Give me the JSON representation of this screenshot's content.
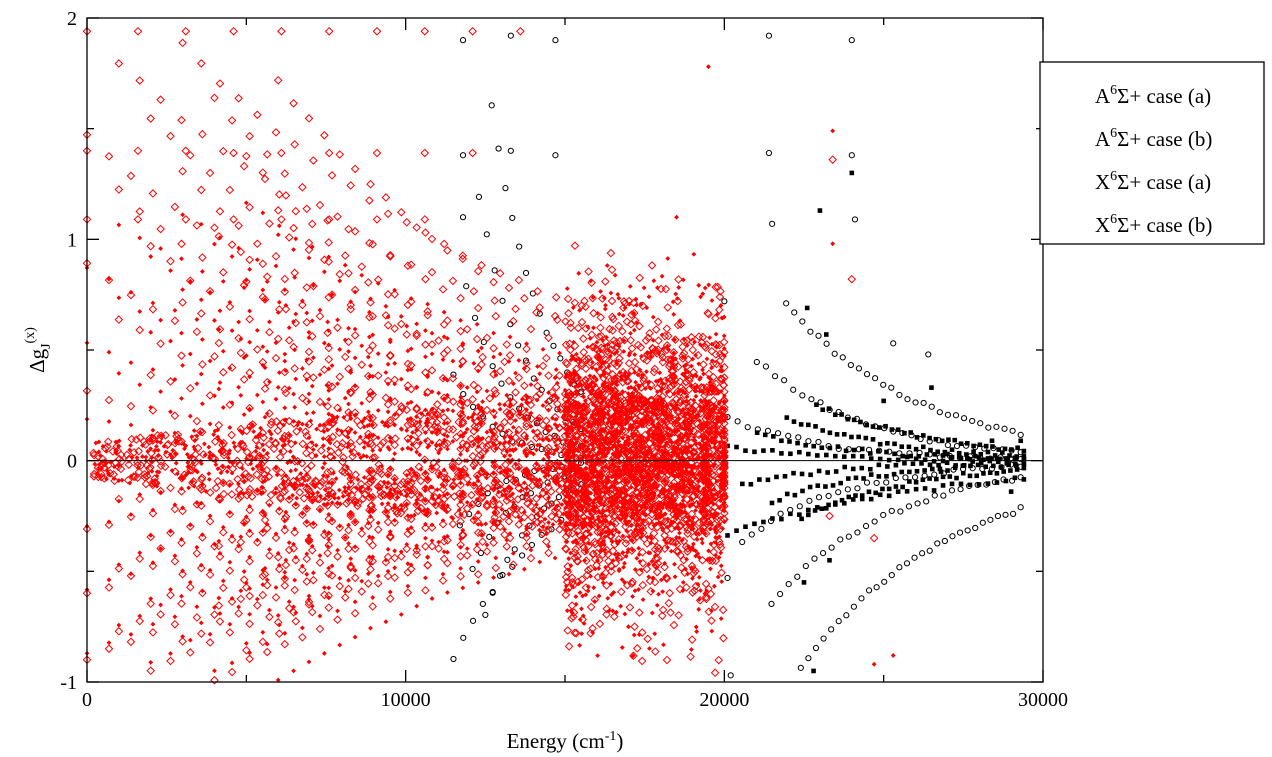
{
  "chart_data": {
    "type": "scatter",
    "title": "",
    "xlabel": {
      "base": "Energy (cm",
      "sup": "-1",
      "tail": ")"
    },
    "ylabel": {
      "base": "Δg",
      "sub": "J",
      "sup": "(x)"
    },
    "xlim": [
      0,
      30000
    ],
    "ylim": [
      -1,
      2
    ],
    "x_ticks": [
      0,
      10000,
      20000,
      30000
    ],
    "x_tick_labels": [
      "0",
      "10000",
      "20000",
      "30000"
    ],
    "x_minor_ticks": [
      5000,
      15000,
      25000
    ],
    "y_ticks": [
      -1,
      0,
      1,
      2
    ],
    "y_tick_labels": [
      "-1",
      "0",
      "1",
      "2"
    ],
    "y_minor_ticks": [
      -0.5,
      0.5,
      1.5
    ],
    "zero_line": true,
    "grid": false,
    "legend_position": "top-right",
    "colors": {
      "black": "#000000",
      "red": "#ff0000"
    },
    "series": [
      {
        "name": {
          "pre": "A",
          "sup": "6",
          "post": "Σ+ case (a)"
        },
        "marker": "open-circle",
        "color": "#000000",
        "clusters": [
          {
            "x_range": [
              11500,
              15500
            ],
            "lines": 8,
            "y_max": 1.9,
            "y_min": -0.95,
            "points_per_line": 14
          },
          {
            "x_range": [
              20100,
              29300
            ],
            "lines": 6,
            "y_max": 0.9,
            "y_min": -1.0,
            "points_per_line": 30
          }
        ],
        "points": [
          [
            11800,
            1.9
          ],
          [
            13300,
            1.92
          ],
          [
            14700,
            1.9
          ],
          [
            21400,
            1.92
          ],
          [
            24000,
            1.9
          ],
          [
            11800,
            1.38
          ],
          [
            13300,
            1.4
          ],
          [
            14700,
            1.38
          ],
          [
            21400,
            1.39
          ],
          [
            24000,
            1.38
          ],
          [
            11800,
            1.1
          ],
          [
            21500,
            1.07
          ],
          [
            24100,
            1.09
          ],
          [
            20000,
            0.72
          ],
          [
            20100,
            -0.53
          ],
          [
            20200,
            -0.97
          ],
          [
            26400,
            0.48
          ],
          [
            25300,
            0.53
          ]
        ]
      },
      {
        "name": {
          "pre": "A",
          "sup": "6",
          "post": "Σ+ case (b)"
        },
        "marker": "filled-square",
        "color": "#000000",
        "clusters": [
          {
            "x_range": [
              20100,
              29400
            ],
            "lines": 8,
            "y_max": 0.3,
            "y_min": -0.35,
            "points_per_line": 34
          }
        ],
        "points": [
          [
            24000,
            1.3
          ],
          [
            23000,
            1.13
          ],
          [
            22600,
            0.69
          ],
          [
            23200,
            0.57
          ],
          [
            22800,
            -0.95
          ],
          [
            22500,
            -0.55
          ],
          [
            23300,
            -0.45
          ],
          [
            29300,
            0.09
          ],
          [
            29000,
            -0.14
          ],
          [
            28400,
            0.09
          ],
          [
            27000,
            0.03
          ],
          [
            26800,
            -0.05
          ],
          [
            26500,
            0.33
          ],
          [
            25000,
            0.27
          ]
        ]
      },
      {
        "name": {
          "pre": "X",
          "sup": "6",
          "post": "Σ+ case (a)"
        },
        "marker": "open-diamond",
        "color": "#ff0000",
        "clusters": [
          {
            "x_range": [
              0,
              20000
            ],
            "lines": 40,
            "y_max": 1.94,
            "y_min": -1.0,
            "points_per_line": 30
          }
        ],
        "points": [
          [
            0,
            1.94
          ],
          [
            1600,
            1.94
          ],
          [
            3100,
            1.94
          ],
          [
            4600,
            1.94
          ],
          [
            6100,
            1.94
          ],
          [
            7600,
            1.94
          ],
          [
            9100,
            1.94
          ],
          [
            10600,
            1.94
          ],
          [
            12100,
            1.94
          ],
          [
            13600,
            1.94
          ],
          [
            0,
            1.4
          ],
          [
            1600,
            1.4
          ],
          [
            3100,
            1.4
          ],
          [
            4600,
            1.39
          ],
          [
            6100,
            1.39
          ],
          [
            7600,
            1.39
          ],
          [
            9100,
            1.39
          ],
          [
            10600,
            1.39
          ],
          [
            12100,
            1.39
          ],
          [
            0,
            1.09
          ],
          [
            1600,
            1.09
          ],
          [
            3100,
            1.09
          ],
          [
            4600,
            1.09
          ],
          [
            6100,
            1.09
          ],
          [
            7600,
            1.09
          ],
          [
            9100,
            1.09
          ],
          [
            10600,
            1.09
          ],
          [
            23400,
            1.36
          ],
          [
            24000,
            0.82
          ],
          [
            23300,
            -0.25
          ],
          [
            24700,
            -0.35
          ]
        ]
      },
      {
        "name": {
          "pre": "X",
          "sup": "6",
          "post": "Σ+ case (b)"
        },
        "marker": "filled-small-diamond",
        "color": "#ff0000",
        "clusters": [
          {
            "x_range": [
              0,
              20000
            ],
            "lines": 42,
            "y_max": 1.2,
            "y_min": -1.0,
            "points_per_line": 30
          }
        ],
        "points": [
          [
            23400,
            1.49
          ],
          [
            23400,
            0.98
          ],
          [
            24700,
            -0.92
          ],
          [
            25300,
            -0.88
          ],
          [
            19500,
            1.78
          ],
          [
            19400,
            0.78
          ],
          [
            18500,
            1.1
          ]
        ]
      }
    ],
    "dense_region": {
      "x_range": [
        15000,
        20000
      ],
      "y_range": [
        -1.0,
        1.0
      ],
      "color": "#ff0000"
    }
  }
}
